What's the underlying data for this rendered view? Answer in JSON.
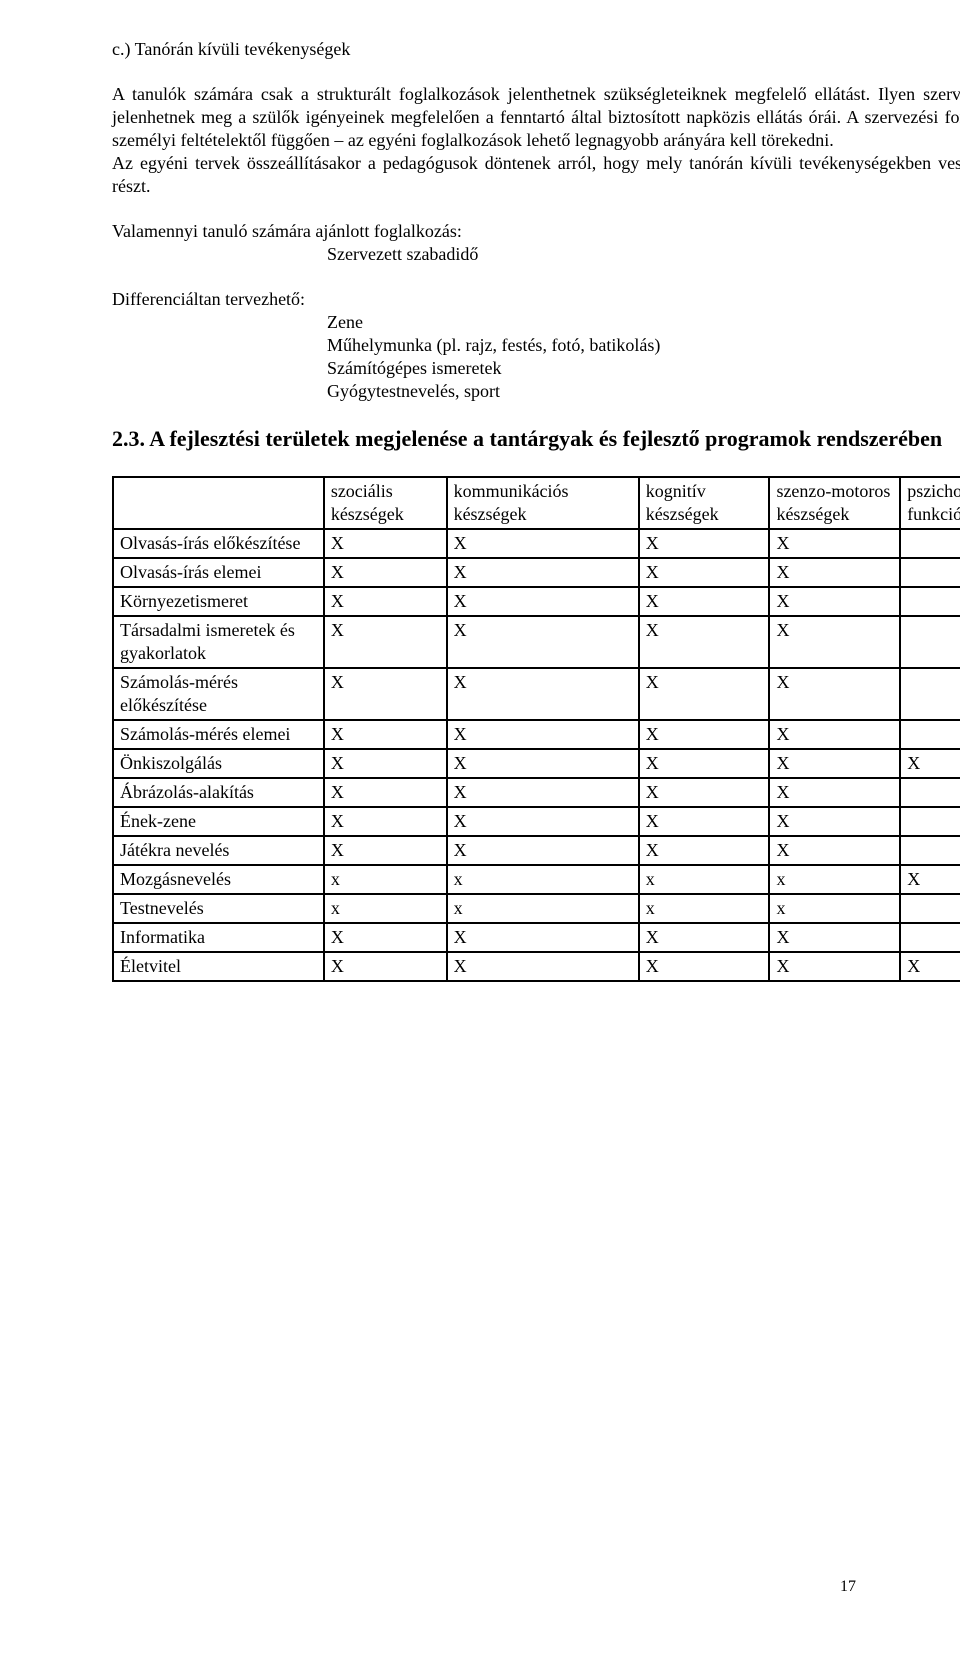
{
  "heading1": "c.) Tanórán kívüli tevékenységek",
  "para1": "A tanulók számára csak a strukturált foglalkozások jelenthetnek szükségleteiknek megfelelő ellátást. Ilyen szervezett formában jelenhetnek meg  a szülők igényeinek megfelelően a fenntartó által biztosított napközis ellátás órái. A szervezési formák közül – a személyi feltételektől függően – az egyéni foglalkozások lehető legnagyobb arányára kell törekedni.",
  "para2": "Az egyéni tervek összeállításakor a pedagógusok döntenek arról, hogy mely tanórán kívüli tevékenységekben vesznek a tanulók részt.",
  "valamennyi_label": "Valamennyi tanuló számára ajánlott foglalkozás:",
  "valamennyi_item": "Szervezett szabadidő",
  "diff_label": "Differenciáltan tervezhető:",
  "diff_items": {
    "i1": "Zene",
    "i2": "Műhelymunka (pl. rajz, festés, fotó, batikolás)",
    "i3": "Számítógépes ismeretek",
    "i4": "Gyógytestnevelés, sport"
  },
  "section_title": "2.3. A fejlesztési területek megjelenése a tantárgyak és fejlesztő programok rendszerében",
  "table": {
    "columns": {
      "c1": "szociális készségek",
      "c2": "kommunikációs készségek",
      "c3": "kognitív készségek",
      "c4": "szenzo-motoros készségek",
      "c5": "pszicho-szomatikus funkciók"
    },
    "rows": [
      {
        "label": "Olvasás-írás előkészítése",
        "v": [
          "X",
          "X",
          "X",
          "X",
          ""
        ]
      },
      {
        "label": "Olvasás-írás elemei",
        "v": [
          "X",
          "X",
          "X",
          "X",
          ""
        ]
      },
      {
        "label": "Környezetismeret",
        "v": [
          "X",
          "X",
          "X",
          "X",
          ""
        ]
      },
      {
        "label": "Társadalmi ismeretek és gyakorlatok",
        "v": [
          "X",
          "X",
          "X",
          "X",
          ""
        ]
      },
      {
        "label": "Számolás-mérés előkészítése",
        "v": [
          "X",
          "X",
          "X",
          "X",
          ""
        ]
      },
      {
        "label": "Számolás-mérés elemei",
        "v": [
          "X",
          "X",
          "X",
          "X",
          ""
        ]
      },
      {
        "label": "Önkiszolgálás",
        "v": [
          "X",
          "X",
          "X",
          "X",
          "X"
        ]
      },
      {
        "label": "Ábrázolás-alakítás",
        "v": [
          "X",
          "X",
          "X",
          "X",
          ""
        ]
      },
      {
        "label": "Ének-zene",
        "v": [
          "X",
          "X",
          "X",
          "X",
          ""
        ]
      },
      {
        "label": "Játékra nevelés",
        "v": [
          "X",
          "X",
          "X",
          "X",
          ""
        ]
      },
      {
        "label": "Mozgásnevelés",
        "v": [
          "x",
          "x",
          "x",
          "x",
          "X"
        ]
      },
      {
        "label": "Testnevelés",
        "v": [
          "x",
          "x",
          "x",
          "x",
          ""
        ]
      },
      {
        "label": "Informatika",
        "v": [
          "X",
          "X",
          "X",
          "X",
          ""
        ]
      },
      {
        "label": "Életvitel",
        "v": [
          "X",
          "X",
          "X",
          "X",
          "X"
        ]
      }
    ]
  },
  "page_number": "17"
}
